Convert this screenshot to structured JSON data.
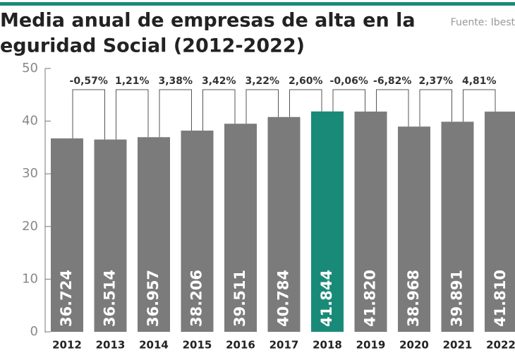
{
  "chart_data": {
    "type": "bar",
    "title": [
      "Media anual de empresas de alta en la",
      "eguridad Social (2012-2022)"
    ],
    "source": "Fuente: Ibest",
    "categories": [
      "2012",
      "2013",
      "2014",
      "2015",
      "2016",
      "2017",
      "2018",
      "2019",
      "2020",
      "2021",
      "2022"
    ],
    "values": [
      36.724,
      36.514,
      36.957,
      38.206,
      39.511,
      40.784,
      41.844,
      41.82,
      38.968,
      39.891,
      41.81
    ],
    "value_labels": [
      "36.724",
      "36.514",
      "36.957",
      "38.206",
      "39.511",
      "40.784",
      "41.844",
      "41.820",
      "38.968",
      "39.891",
      "41.810"
    ],
    "change_labels": [
      "-0,57%",
      "1,21%",
      "3,38%",
      "3,42%",
      "3,22%",
      "2,60%",
      "-0,06%",
      "-6,82%",
      "2,37%",
      "4,81%"
    ],
    "color": "#7b7b7b",
    "highlight_color": "#1a8a78",
    "highlight_index": 6,
    "ylim": [
      0,
      50
    ],
    "yticks": [
      0,
      10,
      20,
      30,
      40,
      50
    ]
  }
}
